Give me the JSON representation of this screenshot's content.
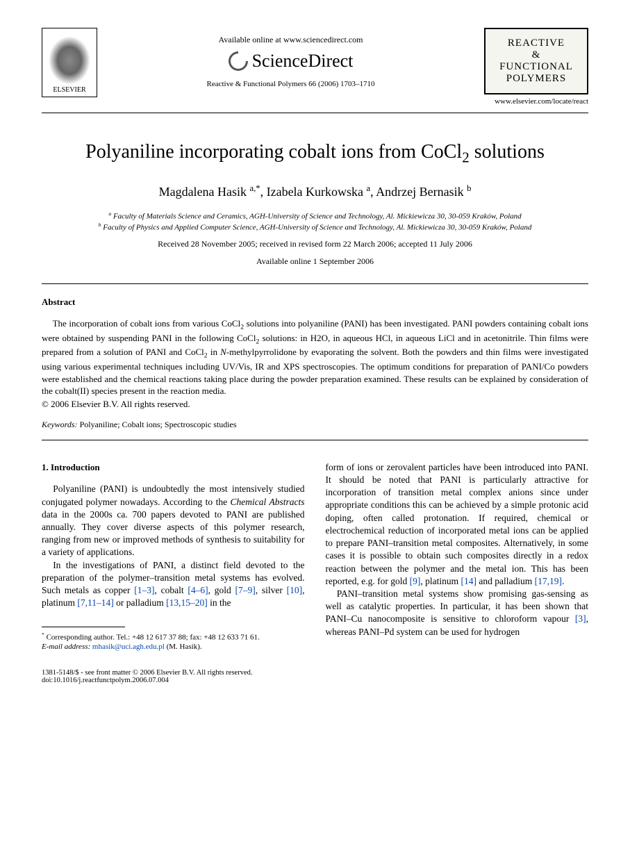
{
  "header": {
    "elsevier_label": "ELSEVIER",
    "available_online": "Available online at www.sciencedirect.com",
    "sd_brand": "ScienceDirect",
    "citation": "Reactive & Functional Polymers 66 (2006) 1703–1710",
    "journal_line1": "REACTIVE",
    "journal_line2": "&",
    "journal_line3": "FUNCTIONAL",
    "journal_line4": "POLYMERS",
    "journal_url": "www.elsevier.com/locate/react"
  },
  "title_html": "Polyaniline incorporating cobalt ions from CoCl<sub>2</sub> solutions",
  "authors_html": "Magdalena Hasik <sup>a,*</sup>, Izabela Kurkowska <sup>a</sup>, Andrzej Bernasik <sup>b</sup>",
  "affiliations": {
    "a": "Faculty of Materials Science and Ceramics, AGH-University of Science and Technology, Al. Mickiewicza 30, 30-059 Kraków, Poland",
    "b": "Faculty of Physics and Applied Computer Science, AGH-University of Science and Technology, Al. Mickiewicza 30, 30-059 Kraków, Poland"
  },
  "dates": {
    "received": "Received 28 November 2005; received in revised form 22 March 2006; accepted 11 July 2006",
    "online": "Available online 1 September 2006"
  },
  "abstract": {
    "heading": "Abstract",
    "body_html": "The incorporation of cobalt ions from various CoCl<sub>2</sub> solutions into polyaniline (PANI) has been investigated. PANI powders containing cobalt ions were obtained by suspending PANI in the following CoCl<sub>2</sub> solutions: in H2O, in aqueous HCl, in aqueous LiCl and in acetonitrile. Thin films were prepared from a solution of PANI and CoCl<sub>2</sub> in <i>N</i>-methylpyrrolidone by evaporating the solvent. Both the powders and thin films were investigated using various experimental techniques including UV/Vis, IR and XPS spectroscopies. The optimum conditions for preparation of PANI/Co powders were established and the chemical reactions taking place during the powder preparation examined. These results can be explained by consideration of the cobalt(II) species present in the reaction media.",
    "copyright": "© 2006 Elsevier B.V. All rights reserved."
  },
  "keywords": {
    "label": "Keywords:",
    "text": " Polyaniline; Cobalt ions; Spectroscopic studies"
  },
  "section1": {
    "heading": "1. Introduction",
    "p1_html": "Polyaniline (PANI) is undoubtedly the most intensively studied conjugated polymer nowadays. According to the <i>Chemical Abstracts</i> data in the 2000s ca. 700 papers devoted to PANI are published annually. They cover diverse aspects of this polymer research, ranging from new or improved methods of synthesis to suitability for a variety of applications.",
    "p2_html": "In the investigations of PANI, a distinct field devoted to the preparation of the polymer–transition metal systems has evolved. Such metals as copper <span class=\"ref\">[1–3]</span>, cobalt <span class=\"ref\">[4–6]</span>, gold <span class=\"ref\">[7–9]</span>, silver <span class=\"ref\">[10]</span>, platinum <span class=\"ref\">[7,11–14]</span> or palladium <span class=\"ref\">[13,15–20]</span> in the",
    "p3_html": "form of ions or zerovalent particles have been introduced into PANI. It should be noted that PANI is particularly attractive for incorporation of transition metal complex anions since under appropriate conditions this can be achieved by a simple protonic acid doping, often called protonation. If required, chemical or electrochemical reduction of incorporated metal ions can be applied to prepare PANI–transition metal composites. Alternatively, in some cases it is possible to obtain such composites directly in a redox reaction between the polymer and the metal ion. This has been reported, e.g. for gold <span class=\"ref\">[9]</span>, platinum <span class=\"ref\">[14]</span> and palladium <span class=\"ref\">[17,19]</span>.",
    "p4_html": "PANI–transition metal systems show promising gas-sensing as well as catalytic properties. In particular, it has been shown that PANI–Cu nanocomposite is sensitive to chloroform vapour <span class=\"ref\">[3]</span>, whereas PANI–Pd system can be used for hydrogen"
  },
  "footnote": {
    "corr_html": "<sup>*</sup> Corresponding author. Tel.: +48 12 617 37 88; fax: +48 12 633 71 61.",
    "email_label": "E-mail address:",
    "email": "mhasik@uci.agh.edu.pl",
    "email_tail": " (M. Hasik)."
  },
  "bottom": {
    "line1": "1381-5148/$ - see front matter © 2006 Elsevier B.V. All rights reserved.",
    "line2": "doi:10.1016/j.reactfunctpolym.2006.07.004"
  },
  "colors": {
    "text": "#000000",
    "link": "#0645ad",
    "background": "#ffffff",
    "journal_box_bg": "#f5f5ef"
  }
}
